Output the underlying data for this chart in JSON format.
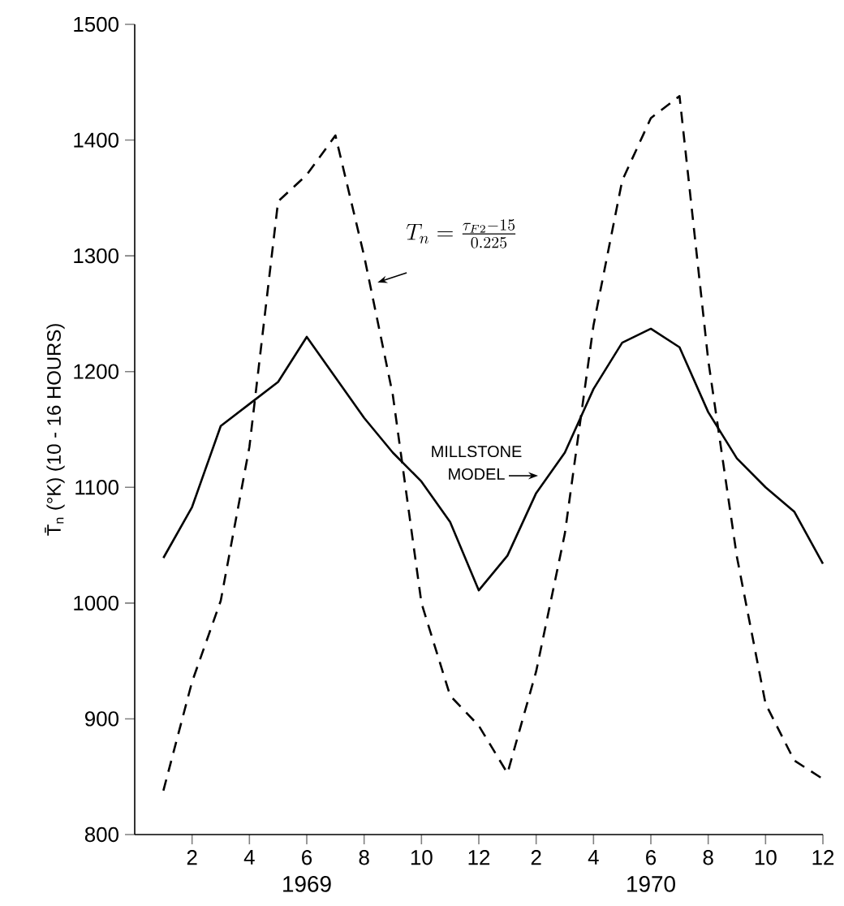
{
  "chart_data": {
    "type": "line",
    "ylabel": "T̄$_{n}$ (°K) (10 - 16 HOURS)",
    "x": [
      "1969-01",
      "1969-02",
      "1969-03",
      "1969-04",
      "1969-05",
      "1969-06",
      "1969-07",
      "1969-08",
      "1969-09",
      "1969-10",
      "1969-11",
      "1969-12",
      "1970-01",
      "1970-02",
      "1970-03",
      "1970-04",
      "1970-05",
      "1970-06",
      "1970-07",
      "1970-08",
      "1970-09",
      "1970-10",
      "1970-11",
      "1970-12"
    ],
    "xlim": [
      "1968-12",
      "1970-12"
    ],
    "xticks": [
      {
        "value": "1969-02",
        "label": "2"
      },
      {
        "value": "1969-04",
        "label": "4"
      },
      {
        "value": "1969-06",
        "label": "6"
      },
      {
        "value": "1969-08",
        "label": "8"
      },
      {
        "value": "1969-10",
        "label": "10"
      },
      {
        "value": "1969-12",
        "label": "12"
      },
      {
        "value": "1970-02",
        "label": "2"
      },
      {
        "value": "1970-04",
        "label": "4"
      },
      {
        "value": "1970-06",
        "label": "6"
      },
      {
        "value": "1970-08",
        "label": "8"
      },
      {
        "value": "1970-10",
        "label": "10"
      },
      {
        "value": "1970-12",
        "label": "12"
      }
    ],
    "ylim": [
      800,
      1500
    ],
    "yticks": [
      800,
      900,
      1000,
      1100,
      1200,
      1300,
      1400,
      1500
    ],
    "marker": "none",
    "series": [
      {
        "color": "#000000",
        "line_style": "solid",
        "values": [
          1039,
          1083,
          1153,
          1172,
          1191,
          1230,
          1195,
          1160,
          1130,
          1105,
          1070,
          1011,
          1041,
          1095,
          1130,
          1185,
          1225,
          1237,
          1221,
          1165,
          1125,
          1100,
          1079,
          1034
        ]
      },
      {
        "color": "#000000",
        "line_style": "dashed",
        "values": [
          838,
          932,
          1002,
          1135,
          1347,
          1370,
          1404,
          1300,
          1180,
          1000,
          920,
          894,
          853,
          941,
          1060,
          1240,
          1365,
          1419,
          1438,
          1210,
          1040,
          913,
          864,
          848
        ]
      }
    ],
    "annotations": [
      {
        "text": "T_n = \\frac{\\tau_{F2}-15}{0.225}",
        "x": "1969-08-15",
        "y": 1277
      },
      {
        "text": "MILLSTONE MODEL",
        "x": "1970-02-03",
        "y": 1110
      },
      "1969",
      "1970"
    ]
  }
}
